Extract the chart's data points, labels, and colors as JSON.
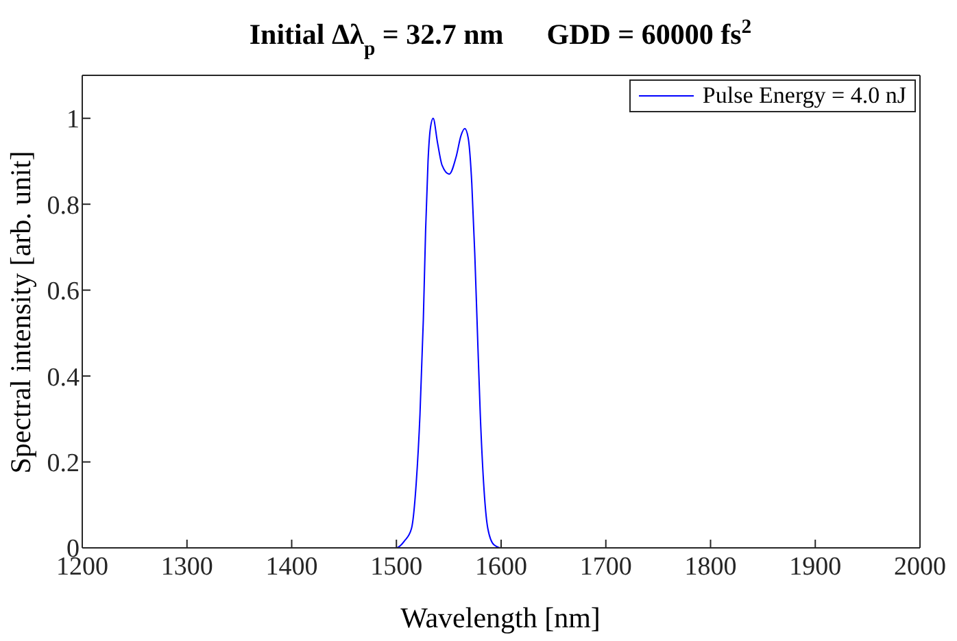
{
  "chart_data": {
    "type": "line",
    "title": "Initial Δλ$_{p}$ = 32.7 nm      GDD = 60000 fs$^{2}$",
    "xlabel": "Wavelength [nm]",
    "ylabel": "Spectral intensity [arb. unit]",
    "x": [
      1200,
      1500,
      1507.7,
      1514.4,
      1518.9,
      1522.5,
      1525.7,
      1527.9,
      1530.2,
      1532.4,
      1535.1,
      1539.2,
      1543.7,
      1550.4,
      1557.2,
      1561.7,
      1565.3,
      1568.5,
      1572,
      1574.8,
      1577.4,
      1580.1,
      1583.3,
      1587.3,
      1593.2,
      1600,
      2000
    ],
    "series": [
      {
        "name": "Pulse Energy = 4.0 nJ",
        "color": "#0000ff",
        "values": [
          0,
          0,
          0.016,
          0.045,
          0.15,
          0.31,
          0.53,
          0.74,
          0.9,
          0.976,
          1,
          0.944,
          0.89,
          0.87,
          0.912,
          0.96,
          0.976,
          0.955,
          0.848,
          0.687,
          0.5,
          0.31,
          0.15,
          0.045,
          0.007,
          0,
          0
        ]
      }
    ],
    "xlim": [
      1200,
      2000
    ],
    "xticks": [
      1200,
      1300,
      1400,
      1500,
      1600,
      1700,
      1800,
      1900,
      2000
    ],
    "ylim": [
      0,
      1.1
    ],
    "yticks": [
      0,
      0.2,
      0.4,
      0.6,
      0.8,
      1
    ],
    "grid": false,
    "legend": "top right",
    "line_style": "solid",
    "marker": "none"
  }
}
